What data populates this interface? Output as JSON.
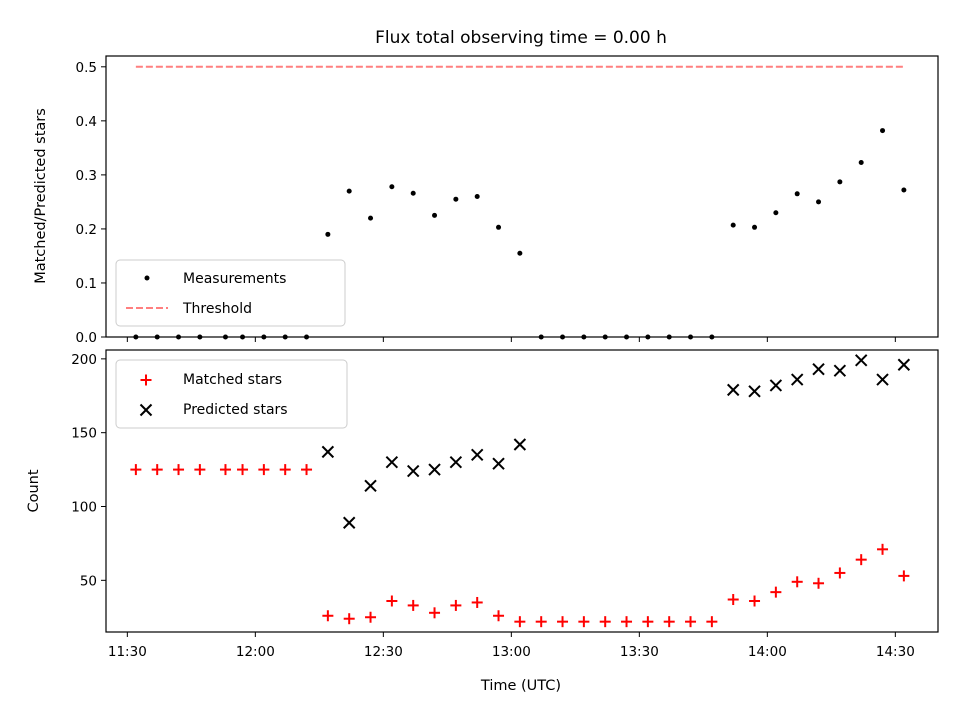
{
  "colors": {
    "measurement": "#000000",
    "threshold": "#ff7f7f",
    "matched": "#ff0000",
    "predicted": "#000000",
    "legend_border": "#cccccc"
  },
  "chart_data": [
    {
      "type": "scatter",
      "title": "Flux total observing time = 0.00 h",
      "xlabel": "",
      "ylabel": "Matched/Predicted stars",
      "xlim": [
        "11:25",
        "14:40"
      ],
      "ylim": [
        0,
        0.52
      ],
      "yticks": [
        "0.0",
        "0.1",
        "0.2",
        "0.3",
        "0.4",
        "0.5"
      ],
      "grid": false,
      "legend_position": "lower-left",
      "legend": [
        "Measurements",
        "Threshold"
      ],
      "series": [
        {
          "name": "Measurements",
          "marker": "dot",
          "points": [
            [
              "11:32",
              0.0
            ],
            [
              "11:37",
              0.0
            ],
            [
              "11:42",
              0.0
            ],
            [
              "11:47",
              0.0
            ],
            [
              "11:53",
              0.0
            ],
            [
              "11:57",
              0.0
            ],
            [
              "12:02",
              0.0
            ],
            [
              "12:07",
              0.0
            ],
            [
              "12:12",
              0.0
            ],
            [
              "12:17",
              0.19
            ],
            [
              "12:22",
              0.27
            ],
            [
              "12:27",
              0.22
            ],
            [
              "12:32",
              0.278
            ],
            [
              "12:37",
              0.266
            ],
            [
              "12:42",
              0.225
            ],
            [
              "12:47",
              0.255
            ],
            [
              "12:52",
              0.26
            ],
            [
              "12:57",
              0.203
            ],
            [
              "13:02",
              0.155
            ],
            [
              "13:07",
              0.0
            ],
            [
              "13:12",
              0.0
            ],
            [
              "13:17",
              0.0
            ],
            [
              "13:22",
              0.0
            ],
            [
              "13:27",
              0.0
            ],
            [
              "13:32",
              0.0
            ],
            [
              "13:37",
              0.0
            ],
            [
              "13:42",
              0.0
            ],
            [
              "13:47",
              0.0
            ],
            [
              "13:52",
              0.207
            ],
            [
              "13:57",
              0.203
            ],
            [
              "14:02",
              0.23
            ],
            [
              "14:07",
              0.265
            ],
            [
              "14:12",
              0.25
            ],
            [
              "14:17",
              0.287
            ],
            [
              "14:22",
              0.323
            ],
            [
              "14:27",
              0.382
            ],
            [
              "14:32",
              0.272
            ]
          ]
        },
        {
          "name": "Threshold",
          "marker": "dashed-line",
          "points": [
            [
              "11:32",
              0.5
            ],
            [
              "14:32",
              0.5
            ]
          ]
        }
      ]
    },
    {
      "type": "scatter",
      "title": "",
      "xlabel": "Time (UTC)",
      "ylabel": "Count",
      "xlim": [
        "11:25",
        "14:40"
      ],
      "ylim": [
        15,
        206
      ],
      "xticks": [
        "11:30",
        "12:00",
        "12:30",
        "13:00",
        "13:30",
        "14:00",
        "14:30"
      ],
      "yticks": [
        "50",
        "100",
        "150",
        "200"
      ],
      "grid": false,
      "legend_position": "upper-left",
      "legend": [
        "Matched stars",
        "Predicted stars"
      ],
      "series": [
        {
          "name": "Matched stars",
          "marker": "plus",
          "points": [
            [
              "11:32",
              125
            ],
            [
              "11:37",
              125
            ],
            [
              "11:42",
              125
            ],
            [
              "11:47",
              125
            ],
            [
              "11:53",
              125
            ],
            [
              "11:57",
              125
            ],
            [
              "12:02",
              125
            ],
            [
              "12:07",
              125
            ],
            [
              "12:12",
              125
            ],
            [
              "12:17",
              26
            ],
            [
              "12:22",
              24
            ],
            [
              "12:27",
              25
            ],
            [
              "12:32",
              36
            ],
            [
              "12:37",
              33
            ],
            [
              "12:42",
              28
            ],
            [
              "12:47",
              33
            ],
            [
              "12:52",
              35
            ],
            [
              "12:57",
              26
            ],
            [
              "13:02",
              22
            ],
            [
              "13:07",
              22
            ],
            [
              "13:12",
              22
            ],
            [
              "13:17",
              22
            ],
            [
              "13:22",
              22
            ],
            [
              "13:27",
              22
            ],
            [
              "13:32",
              22
            ],
            [
              "13:37",
              22
            ],
            [
              "13:42",
              22
            ],
            [
              "13:47",
              22
            ],
            [
              "13:52",
              37
            ],
            [
              "13:57",
              36
            ],
            [
              "14:02",
              42
            ],
            [
              "14:07",
              49
            ],
            [
              "14:12",
              48
            ],
            [
              "14:17",
              55
            ],
            [
              "14:22",
              64
            ],
            [
              "14:27",
              71
            ],
            [
              "14:32",
              53
            ]
          ]
        },
        {
          "name": "Predicted stars",
          "marker": "x",
          "points": [
            [
              "12:17",
              137
            ],
            [
              "12:22",
              89
            ],
            [
              "12:27",
              114
            ],
            [
              "12:32",
              130
            ],
            [
              "12:37",
              124
            ],
            [
              "12:42",
              125
            ],
            [
              "12:47",
              130
            ],
            [
              "12:52",
              135
            ],
            [
              "12:57",
              129
            ],
            [
              "13:02",
              142
            ],
            [
              "13:52",
              179
            ],
            [
              "13:57",
              178
            ],
            [
              "14:02",
              182
            ],
            [
              "14:07",
              186
            ],
            [
              "14:12",
              193
            ],
            [
              "14:17",
              192
            ],
            [
              "14:22",
              199
            ],
            [
              "14:27",
              186
            ],
            [
              "14:32",
              196
            ]
          ]
        }
      ]
    }
  ]
}
